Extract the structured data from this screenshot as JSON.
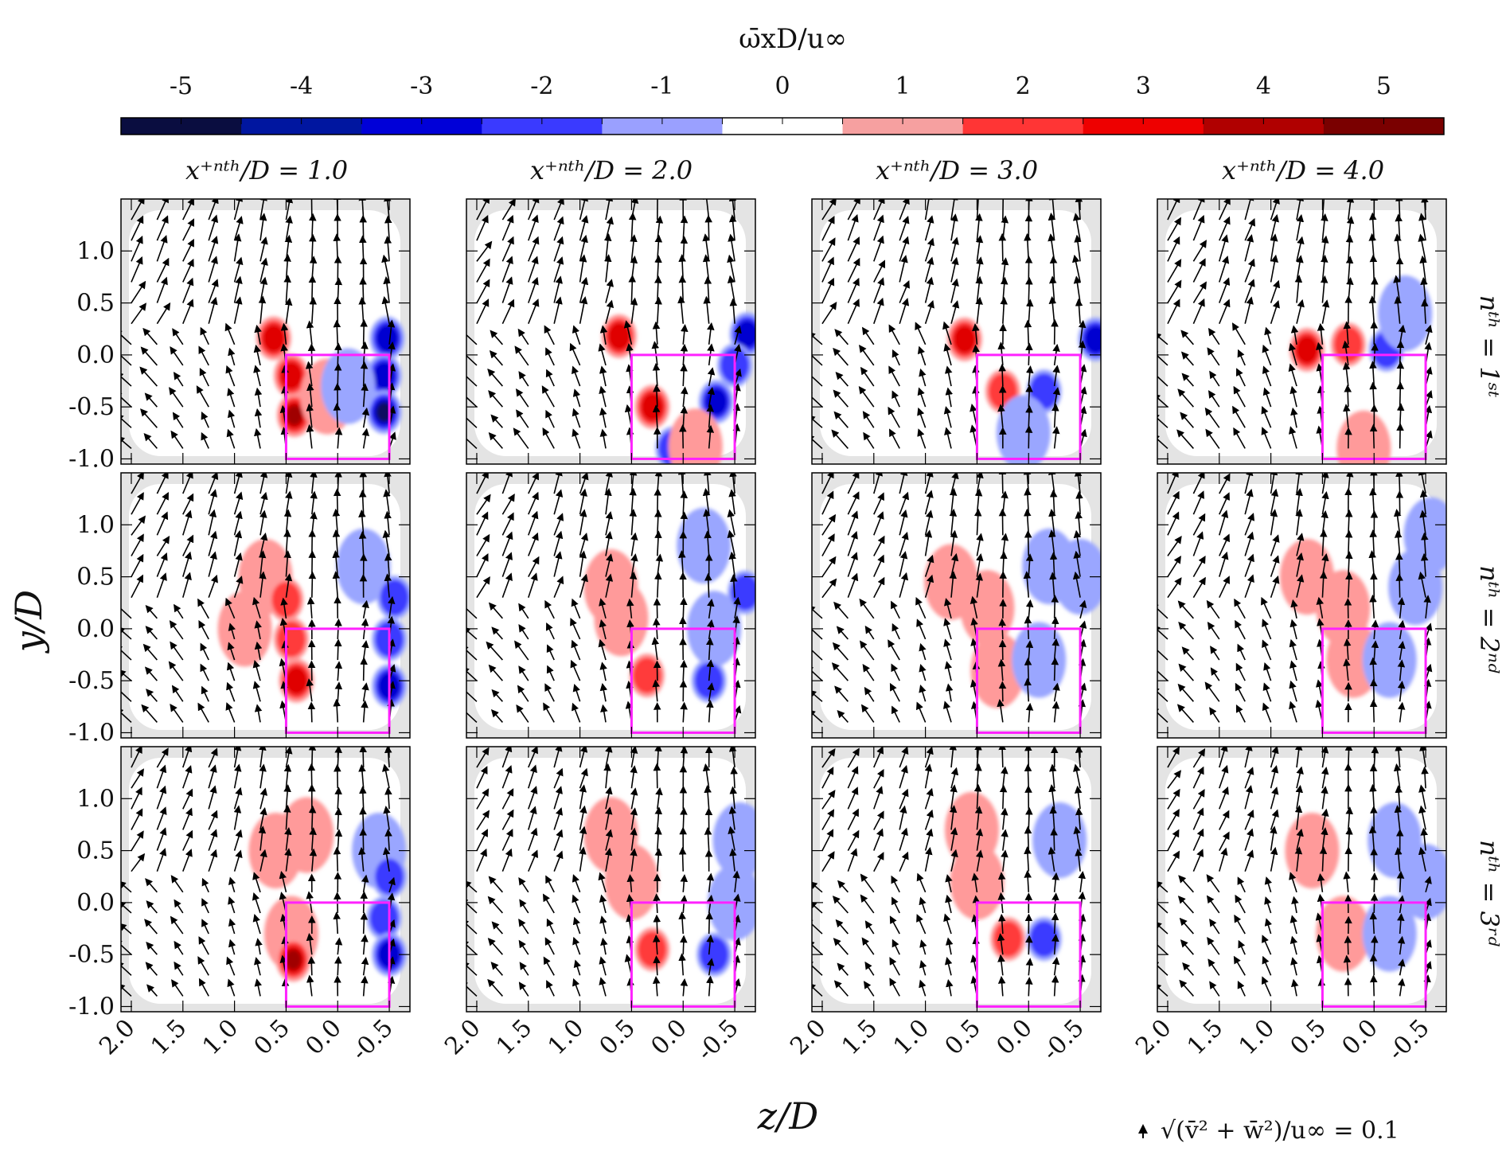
{
  "chart_data": {
    "type": "vector-contour",
    "title": "ω̄xD/u∞",
    "colorbar": {
      "label": "ω̄xD/u∞",
      "tick_labels": [
        "-5",
        "-4",
        "-3",
        "-2",
        "-1",
        "0",
        "1",
        "2",
        "3",
        "4",
        "5"
      ],
      "range": [
        -5.5,
        5.5
      ],
      "bin_colors": [
        "#0a0d40",
        "#0016a0",
        "#0000d8",
        "#3a3aff",
        "#9aa0ff",
        "#ffffff",
        "#f6a0a0",
        "#ff3535",
        "#ee0000",
        "#b00000",
        "#7a0000"
      ]
    },
    "xlabel": "z/D",
    "ylabel": "y/D",
    "x_ticks": [
      "2.0",
      "1.5",
      "1.0",
      "0.5",
      "0.0",
      "-0.5"
    ],
    "y_ticks": [
      "1.0",
      "0.5",
      "0.0",
      "-0.5",
      "-1.0"
    ],
    "xlim": [
      2.1,
      -0.7
    ],
    "ylim": [
      -1.05,
      1.5
    ],
    "column_titles": [
      "x⁺ⁿᵗʰ/D = 1.0",
      "x⁺ⁿᵗʰ/D = 2.0",
      "x⁺ⁿᵗʰ/D = 3.0",
      "x⁺ⁿᵗʰ/D = 4.0"
    ],
    "row_labels": [
      "nᵗʰ = 1ˢᵗ",
      "nᵗʰ = 2ⁿᵈ",
      "nᵗʰ = 3ʳᵈ"
    ],
    "box_color": "#ff22ff",
    "box_extent": {
      "z": [
        0.5,
        -0.5
      ],
      "y": [
        0.0,
        -1.0
      ]
    },
    "reference_vector": "√(v̄² + w̄²)/u∞ = 0.1",
    "vortex_blobs": [
      [
        [
          [
            0.62,
            0.16,
            1,
            3
          ],
          [
            0.45,
            -0.2,
            1,
            3
          ],
          [
            0.42,
            -0.58,
            1,
            4
          ],
          [
            -0.48,
            0.16,
            -1,
            3
          ],
          [
            -0.45,
            -0.2,
            -1,
            3
          ],
          [
            -0.45,
            -0.55,
            -1,
            4
          ],
          [
            0.1,
            -0.4,
            1,
            1
          ],
          [
            -0.1,
            -0.3,
            -1,
            1
          ]
        ],
        [
          [
            0.62,
            0.18,
            1,
            3
          ],
          [
            0.3,
            -0.5,
            1,
            3
          ],
          [
            -0.32,
            -0.45,
            -1,
            3
          ],
          [
            -0.62,
            0.2,
            -1,
            3
          ],
          [
            -0.5,
            -0.1,
            -1,
            2
          ],
          [
            0.1,
            -0.9,
            -1,
            2
          ],
          [
            -0.12,
            -0.88,
            1,
            1
          ]
        ],
        [
          [
            0.62,
            0.15,
            1,
            3
          ],
          [
            0.25,
            -0.35,
            1,
            2
          ],
          [
            -0.15,
            -0.35,
            -1,
            2
          ],
          [
            0.05,
            -0.75,
            -1,
            1
          ],
          [
            -0.65,
            0.15,
            -1,
            3
          ]
        ],
        [
          [
            0.65,
            0.05,
            1,
            3
          ],
          [
            0.25,
            0.1,
            1,
            2
          ],
          [
            -0.12,
            0.05,
            -1,
            2
          ],
          [
            0.1,
            -0.9,
            1,
            1
          ],
          [
            -0.3,
            0.4,
            -1,
            1
          ]
        ]
      ],
      [
        [
          [
            0.7,
            0.5,
            1,
            1
          ],
          [
            0.5,
            0.28,
            1,
            2
          ],
          [
            0.45,
            -0.1,
            1,
            2
          ],
          [
            0.4,
            -0.5,
            1,
            3
          ],
          [
            -0.25,
            0.6,
            -1,
            1
          ],
          [
            -0.55,
            0.3,
            -1,
            2
          ],
          [
            -0.5,
            -0.1,
            -1,
            2
          ],
          [
            -0.5,
            -0.55,
            -1,
            3
          ],
          [
            0.9,
            0.0,
            1,
            1
          ]
        ],
        [
          [
            0.7,
            0.4,
            1,
            1
          ],
          [
            0.6,
            0.1,
            1,
            1
          ],
          [
            0.35,
            -0.45,
            1,
            2
          ],
          [
            -0.6,
            0.35,
            -1,
            2
          ],
          [
            -0.3,
            0.0,
            -1,
            1
          ],
          [
            -0.25,
            -0.5,
            -1,
            2
          ],
          [
            -0.2,
            0.8,
            -1,
            1
          ]
        ],
        [
          [
            0.75,
            0.45,
            1,
            1
          ],
          [
            0.4,
            0.2,
            1,
            1
          ],
          [
            0.3,
            -0.4,
            1,
            1
          ],
          [
            -0.2,
            0.6,
            -1,
            1
          ],
          [
            -0.5,
            0.5,
            -1,
            1
          ],
          [
            -0.1,
            -0.3,
            -1,
            1
          ]
        ],
        [
          [
            0.65,
            0.5,
            1,
            1
          ],
          [
            0.3,
            0.2,
            1,
            1
          ],
          [
            0.2,
            -0.3,
            1,
            1
          ],
          [
            -0.4,
            0.4,
            -1,
            1
          ],
          [
            -0.15,
            -0.3,
            -1,
            1
          ],
          [
            -0.55,
            0.9,
            -1,
            1
          ]
        ]
      ],
      [
        [
          [
            0.6,
            0.5,
            1,
            1
          ],
          [
            0.3,
            0.65,
            1,
            1
          ],
          [
            0.45,
            -0.3,
            1,
            1
          ],
          [
            0.43,
            -0.55,
            1,
            4
          ],
          [
            -0.4,
            0.5,
            -1,
            1
          ],
          [
            -0.5,
            0.25,
            -1,
            2
          ],
          [
            -0.45,
            -0.15,
            -1,
            2
          ],
          [
            -0.5,
            -0.5,
            -1,
            3
          ]
        ],
        [
          [
            0.7,
            0.65,
            1,
            1
          ],
          [
            0.5,
            0.2,
            1,
            1
          ],
          [
            0.3,
            -0.45,
            1,
            2
          ],
          [
            -0.55,
            0.6,
            -1,
            1
          ],
          [
            -0.5,
            0.0,
            -1,
            1
          ],
          [
            -0.3,
            -0.5,
            -1,
            2
          ]
        ],
        [
          [
            0.55,
            0.7,
            1,
            1
          ],
          [
            0.5,
            0.2,
            1,
            1
          ],
          [
            0.2,
            -0.35,
            1,
            2
          ],
          [
            -0.3,
            0.6,
            -1,
            1
          ],
          [
            -0.15,
            -0.35,
            -1,
            2
          ]
        ],
        [
          [
            0.6,
            0.5,
            1,
            1
          ],
          [
            0.3,
            -0.3,
            1,
            1
          ],
          [
            -0.2,
            0.6,
            -1,
            1
          ],
          [
            -0.5,
            0.2,
            -1,
            1
          ],
          [
            -0.15,
            -0.3,
            -1,
            1
          ]
        ]
      ]
    ]
  }
}
